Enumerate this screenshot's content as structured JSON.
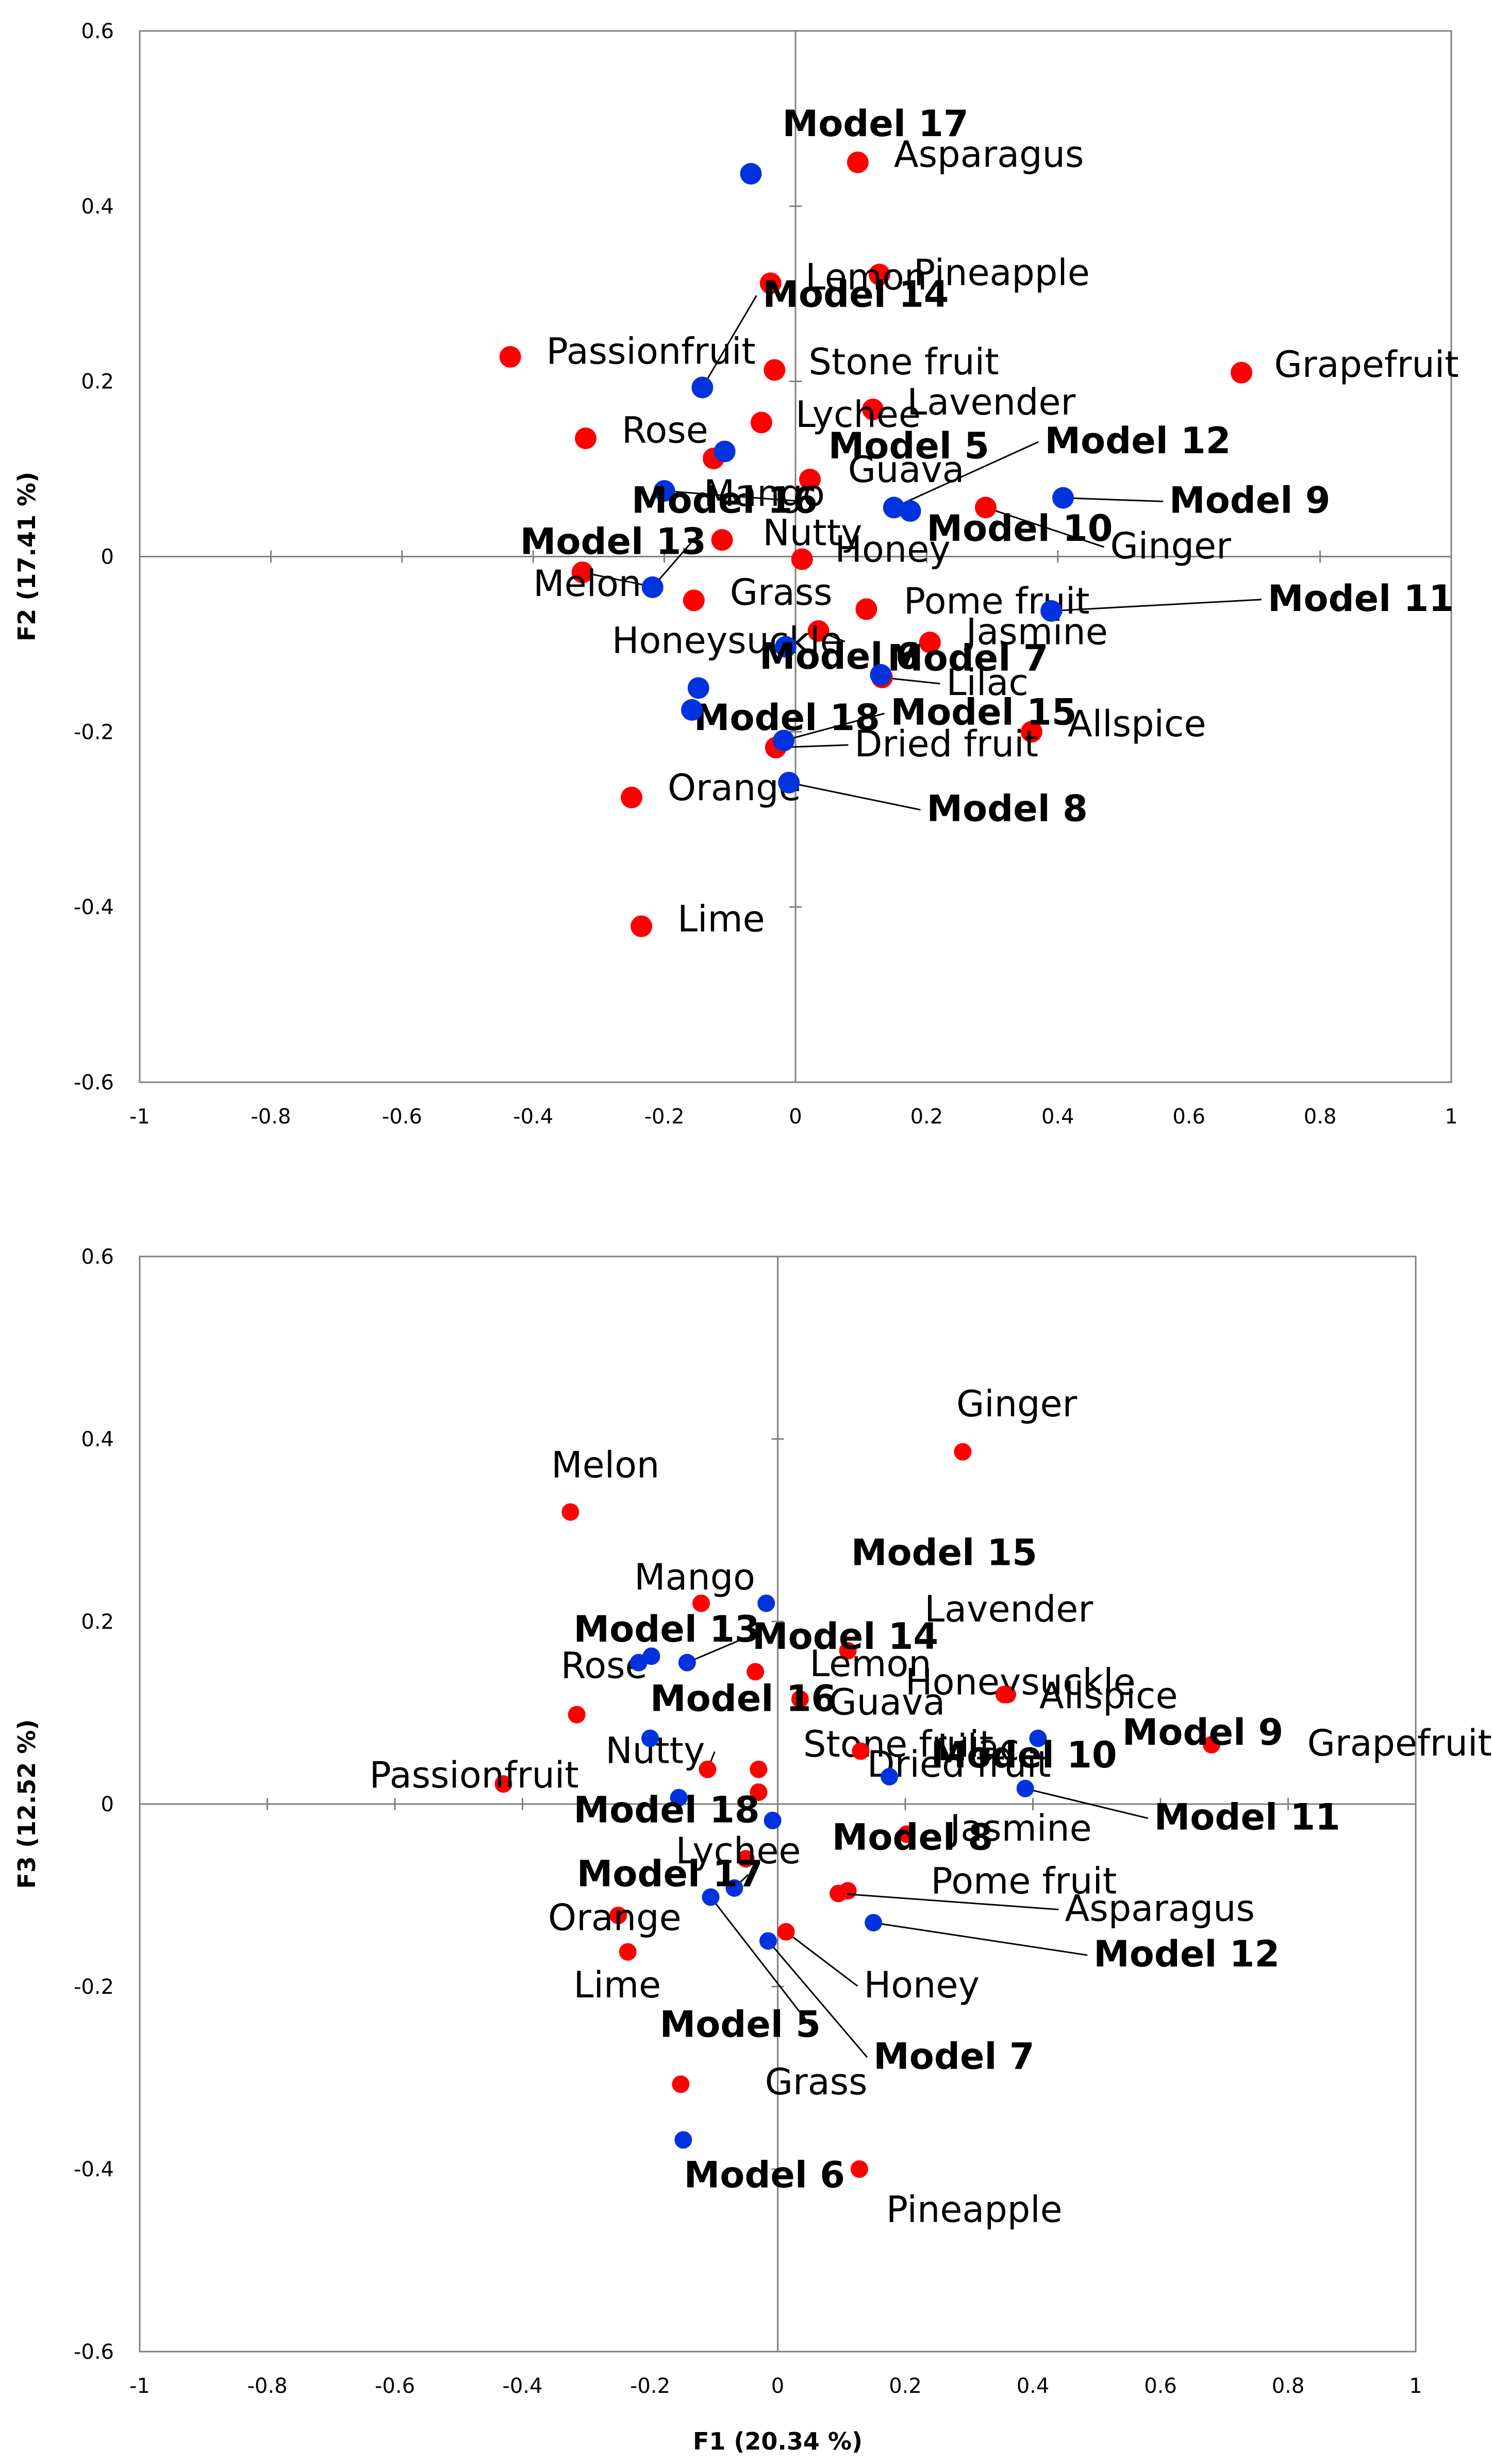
{
  "colors": {
    "attribute": "#ff0000",
    "model": "#0033dd",
    "axis": "#808080",
    "frame": "#808080",
    "leader": "#000000"
  },
  "chart_data": [
    {
      "type": "scatter",
      "title": "",
      "xlabel": "",
      "ylabel": "F2 (17.41 %)",
      "xlim": [
        -1,
        1
      ],
      "ylim": [
        -0.6,
        0.6
      ],
      "xtick_labels": [
        "-1",
        "-0.8",
        "-0.6",
        "-0.4",
        "-0.2",
        "0",
        "0.2",
        "0.4",
        "0.6",
        "0.8",
        "1"
      ],
      "ytick_labels": [
        "-0.6",
        "-0.4",
        "-0.2",
        "0",
        "0.2",
        "0.4",
        "0.6"
      ],
      "grid": false,
      "series": [
        {
          "name": "Attributes",
          "kind": "attribute",
          "points": [
            {
              "label": "Asparagus",
              "x": 0.095,
              "y": 0.45,
              "lx": 0.15,
              "ly": 0.445
            },
            {
              "label": "Pineapple",
              "x": 0.128,
              "y": 0.322,
              "lx": 0.18,
              "ly": 0.31
            },
            {
              "label": "Lemon",
              "x": -0.038,
              "y": 0.312,
              "lx": 0.015,
              "ly": 0.305
            },
            {
              "label": "Passionfruit",
              "x": -0.435,
              "y": 0.228,
              "lx": -0.38,
              "ly": 0.22
            },
            {
              "label": "Stone fruit",
              "x": -0.032,
              "y": 0.213,
              "lx": 0.02,
              "ly": 0.208
            },
            {
              "label": "Grapefruit",
              "x": 0.68,
              "y": 0.21,
              "lx": 0.73,
              "ly": 0.205
            },
            {
              "label": "Lavender",
              "x": 0.118,
              "y": 0.168,
              "lx": 0.17,
              "ly": 0.162
            },
            {
              "label": "Lychee",
              "x": -0.052,
              "y": 0.153,
              "lx": 0.0,
              "ly": 0.148
            },
            {
              "label": "Rose",
              "x": -0.32,
              "y": 0.135,
              "lx": -0.265,
              "ly": 0.13
            },
            {
              "label": "Guava",
              "x": 0.022,
              "y": 0.088,
              "lx": 0.08,
              "ly": 0.085
            },
            {
              "label": "Ginger",
              "x": 0.29,
              "y": 0.056,
              "lx": 0.48,
              "ly": -0.002,
              "leader": true
            },
            {
              "label": "Mango",
              "x": -0.125,
              "y": 0.112,
              "lx": -0.14,
              "ly": 0.058
            },
            {
              "label": "Nutty",
              "x": -0.112,
              "y": 0.019,
              "lx": -0.05,
              "ly": 0.013
            },
            {
              "label": "Honey",
              "x": 0.01,
              "y": -0.003,
              "lx": 0.06,
              "ly": -0.006
            },
            {
              "label": "Melon",
              "x": -0.325,
              "y": -0.018,
              "lx": -0.4,
              "ly": -0.045,
              "leader": true
            },
            {
              "label": "Grass",
              "x": -0.155,
              "y": -0.05,
              "lx": -0.1,
              "ly": -0.055
            },
            {
              "label": "Pome fruit",
              "x": 0.108,
              "y": -0.06,
              "lx": 0.165,
              "ly": -0.065
            },
            {
              "label": "Honeysuckle",
              "x": 0.035,
              "y": -0.085,
              "lx": -0.28,
              "ly": -0.11,
              "leader": true
            },
            {
              "label": "Jasmine",
              "x": 0.205,
              "y": -0.098,
              "lx": 0.26,
              "ly": -0.1
            },
            {
              "label": "Lilac",
              "x": 0.132,
              "y": -0.138,
              "lx": 0.23,
              "ly": -0.158,
              "leader": true
            },
            {
              "label": "Allspice",
              "x": 0.36,
              "y": -0.2,
              "lx": 0.415,
              "ly": -0.205
            },
            {
              "label": "Dried fruit",
              "x": -0.03,
              "y": -0.218,
              "lx": 0.09,
              "ly": -0.228,
              "leader": true
            },
            {
              "label": "Orange",
              "x": -0.25,
              "y": -0.275,
              "lx": -0.195,
              "ly": -0.278
            },
            {
              "label": "Lime",
              "x": -0.235,
              "y": -0.422,
              "lx": -0.18,
              "ly": -0.428
            }
          ]
        },
        {
          "name": "Models",
          "kind": "model",
          "points": [
            {
              "label": "Model 17",
              "x": -0.068,
              "y": 0.437,
              "lx": -0.02,
              "ly": 0.48
            },
            {
              "label": "Model 14",
              "x": -0.142,
              "y": 0.193,
              "lx": -0.05,
              "ly": 0.285,
              "leader": true
            },
            {
              "label": "Model 5",
              "x": -0.108,
              "y": 0.12,
              "lx": 0.05,
              "ly": 0.112
            },
            {
              "label": "Model 12",
              "x": 0.15,
              "y": 0.056,
              "lx": 0.38,
              "ly": 0.118,
              "leader": true
            },
            {
              "label": "Model 16",
              "x": -0.2,
              "y": 0.075,
              "lx": -0.25,
              "ly": 0.05,
              "leader": true
            },
            {
              "label": "Model 9",
              "x": 0.408,
              "y": 0.067,
              "lx": 0.57,
              "ly": 0.05,
              "leader": true
            },
            {
              "label": "Model 10",
              "x": 0.175,
              "y": 0.052,
              "lx": 0.2,
              "ly": 0.018
            },
            {
              "label": "Model 13",
              "x": -0.218,
              "y": -0.035,
              "lx": -0.42,
              "ly": 0.003,
              "leader": true
            },
            {
              "label": "Model 11",
              "x": 0.39,
              "y": -0.062,
              "lx": 0.72,
              "ly": -0.062,
              "leader": true
            },
            {
              "label": "Model 6",
              "x": -0.015,
              "y": -0.103,
              "lx": -0.055,
              "ly": -0.128
            },
            {
              "label": "Model 7",
              "x": 0.13,
              "y": -0.135,
              "lx": 0.14,
              "ly": -0.13
            },
            {
              "label": "Model 18",
              "x": -0.148,
              "y": -0.15,
              "lx": -0.155,
              "ly": -0.198
            },
            {
              "label": "Model 18",
              "x": -0.158,
              "y": -0.175,
              "lx": null,
              "ly": null
            },
            {
              "label": "Model 15",
              "x": -0.018,
              "y": -0.21,
              "lx": 0.145,
              "ly": -0.192,
              "leader": true
            },
            {
              "label": "Model 8",
              "x": -0.01,
              "y": -0.258,
              "lx": 0.2,
              "ly": -0.302,
              "leader": true
            }
          ]
        }
      ]
    },
    {
      "type": "scatter",
      "title": "",
      "xlabel": "F1 (20.34 %)",
      "ylabel": "F3 (12.52 %)",
      "xlim": [
        -1,
        1
      ],
      "ylim": [
        -0.6,
        0.6
      ],
      "xtick_labels": [
        "-1",
        "-0.8",
        "-0.6",
        "-0.4",
        "-0.2",
        "0",
        "0.2",
        "0.4",
        "0.6",
        "0.8",
        "1"
      ],
      "ytick_labels": [
        "-0.6",
        "-0.4",
        "-0.2",
        "0",
        "0.2",
        "0.4",
        "0.6"
      ],
      "grid": false,
      "series": [
        {
          "name": "Attributes",
          "kind": "attribute",
          "points": [
            {
              "label": "Ginger",
              "x": 0.29,
              "y": 0.386,
              "lx": 0.28,
              "ly": 0.425
            },
            {
              "label": "Melon",
              "x": -0.325,
              "y": 0.32,
              "lx": -0.355,
              "ly": 0.358
            },
            {
              "label": "Mango",
              "x": -0.12,
              "y": 0.22,
              "lx": -0.225,
              "ly": 0.235
            },
            {
              "label": "Lavender",
              "x": 0.11,
              "y": 0.168,
              "lx": 0.23,
              "ly": 0.2
            },
            {
              "label": "Lemon",
              "x": -0.035,
              "y": 0.145,
              "lx": 0.05,
              "ly": 0.14
            },
            {
              "label": "Rose",
              "x": -0.315,
              "y": 0.098,
              "lx": -0.34,
              "ly": 0.138
            },
            {
              "label": "Honeysuckle",
              "x": 0.36,
              "y": 0.12,
              "lx": 0.2,
              "ly": 0.12
            },
            {
              "label": "Allspice",
              "x": 0.355,
              "y": 0.12,
              "lx": 0.41,
              "ly": 0.105
            },
            {
              "label": "Guava",
              "x": 0.035,
              "y": 0.115,
              "lx": 0.08,
              "ly": 0.098
            },
            {
              "label": "Grapefruit",
              "x": 0.68,
              "y": 0.065,
              "lx": 0.83,
              "ly": 0.053
            },
            {
              "label": "Nutty",
              "x": -0.11,
              "y": 0.038,
              "lx": -0.27,
              "ly": 0.045,
              "leader": true
            },
            {
              "label": "Stone fruit",
              "x": -0.03,
              "y": 0.038,
              "lx": 0.04,
              "ly": 0.052
            },
            {
              "label": "Lilac",
              "x": 0.13,
              "y": 0.058,
              "lx": 0.25,
              "ly": 0.048
            },
            {
              "label": "Dried fruit",
              "x": -0.03,
              "y": 0.013,
              "lx": 0.14,
              "ly": 0.03
            },
            {
              "label": "Passionfruit",
              "x": -0.43,
              "y": 0.022,
              "lx": -0.64,
              "ly": 0.018
            },
            {
              "label": "Jasmine",
              "x": 0.202,
              "y": -0.033,
              "lx": 0.27,
              "ly": -0.04
            },
            {
              "label": "Lychee",
              "x": -0.05,
              "y": -0.06,
              "lx": -0.16,
              "ly": -0.065
            },
            {
              "label": "Pome fruit",
              "x": 0.11,
              "y": -0.095,
              "lx": 0.24,
              "ly": -0.098
            },
            {
              "label": "Asparagus",
              "x": 0.095,
              "y": -0.098,
              "lx": 0.45,
              "ly": -0.128,
              "leader": true
            },
            {
              "label": "Orange",
              "x": -0.25,
              "y": -0.122,
              "lx": -0.36,
              "ly": -0.138
            },
            {
              "label": "Honey",
              "x": 0.013,
              "y": -0.14,
              "lx": 0.135,
              "ly": -0.212,
              "leader": true
            },
            {
              "label": "Lime",
              "x": -0.235,
              "y": -0.162,
              "lx": -0.32,
              "ly": -0.212
            },
            {
              "label": "Grass",
              "x": -0.152,
              "y": -0.307,
              "lx": -0.02,
              "ly": -0.318
            },
            {
              "label": "Pineapple",
              "x": 0.128,
              "y": -0.4,
              "lx": 0.17,
              "ly": -0.458
            }
          ]
        },
        {
          "name": "Models",
          "kind": "model",
          "points": [
            {
              "label": "Model 15",
              "x": -0.018,
              "y": 0.22,
              "lx": 0.115,
              "ly": 0.262
            },
            {
              "label": "Model 13",
              "x": -0.218,
              "y": 0.155,
              "lx": -0.32,
              "ly": 0.178
            },
            {
              "label": "Model 13",
              "x": -0.198,
              "y": 0.162,
              "lx": null,
              "ly": null
            },
            {
              "label": "Model 14",
              "x": -0.142,
              "y": 0.155,
              "lx": -0.04,
              "ly": 0.17,
              "leader": true
            },
            {
              "label": "Model 16",
              "x": -0.2,
              "y": 0.072,
              "lx": -0.2,
              "ly": 0.102
            },
            {
              "label": "Model 9",
              "x": 0.408,
              "y": 0.072,
              "lx": 0.54,
              "ly": 0.065
            },
            {
              "label": "Model 18",
              "x": -0.155,
              "y": 0.007,
              "lx": -0.32,
              "ly": -0.02
            },
            {
              "label": "Model 11",
              "x": 0.388,
              "y": 0.017,
              "lx": 0.59,
              "ly": -0.028,
              "leader": true
            },
            {
              "label": "Model 10",
              "x": 0.175,
              "y": 0.03,
              "lx": 0.24,
              "ly": 0.04
            },
            {
              "label": "Model 8",
              "x": -0.008,
              "y": -0.018,
              "lx": 0.085,
              "ly": -0.05
            },
            {
              "label": "Model 17",
              "x": -0.068,
              "y": -0.092,
              "lx": -0.315,
              "ly": -0.09,
              "leader": true
            },
            {
              "label": "Model 5",
              "x": -0.105,
              "y": -0.102,
              "lx": -0.185,
              "ly": -0.255,
              "leader": true
            },
            {
              "label": "Model 12",
              "x": 0.15,
              "y": -0.13,
              "lx": 0.495,
              "ly": -0.178,
              "leader": true
            },
            {
              "label": "Model 7",
              "x": -0.015,
              "y": -0.15,
              "lx": 0.15,
              "ly": -0.29,
              "leader": true
            },
            {
              "label": "Model 6",
              "x": -0.148,
              "y": -0.368,
              "lx": -0.147,
              "ly": -0.42
            }
          ]
        }
      ]
    }
  ]
}
